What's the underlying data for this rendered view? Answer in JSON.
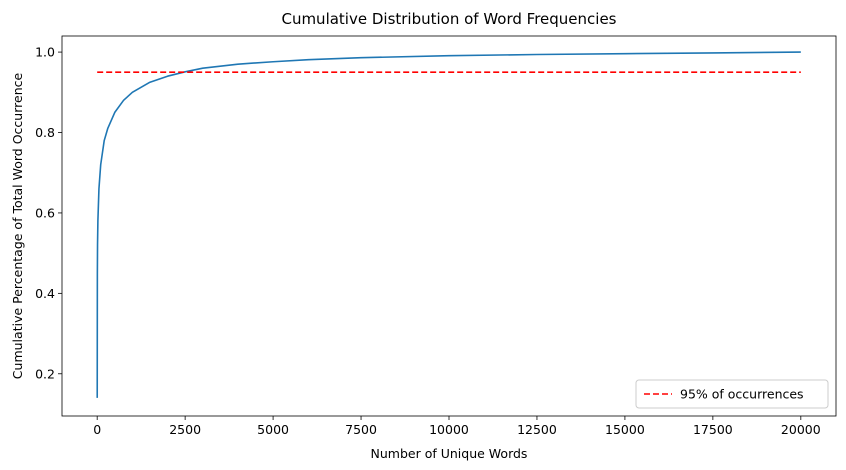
{
  "chart_data": {
    "type": "line",
    "title": "Cumulative Distribution of Word Frequencies",
    "xlabel": "Number of Unique Words",
    "ylabel": "Cumulative Percentage of Total Word Occurrence",
    "xlim": [
      -1000,
      21000
    ],
    "ylim": [
      0.095,
      1.04
    ],
    "xticks": [
      0,
      2500,
      5000,
      7500,
      10000,
      12500,
      15000,
      17500,
      20000
    ],
    "xtick_labels": [
      "0",
      "2500",
      "5000",
      "7500",
      "10000",
      "12500",
      "15000",
      "17500",
      "20000"
    ],
    "yticks": [
      0.2,
      0.4,
      0.6,
      0.8,
      1.0
    ],
    "ytick_labels": [
      "0.2",
      "0.4",
      "0.6",
      "0.8",
      "1.0"
    ],
    "grid": false,
    "legend_position": "lower-right",
    "series": [
      {
        "color": "#1f77b4",
        "style": "solid",
        "x": [
          1,
          5,
          10,
          20,
          50,
          100,
          200,
          300,
          500,
          750,
          1000,
          1500,
          2000,
          2500,
          3000,
          4000,
          5000,
          6000,
          7500,
          10000,
          12500,
          15000,
          17500,
          20000
        ],
        "y": [
          0.14,
          0.45,
          0.52,
          0.58,
          0.66,
          0.72,
          0.78,
          0.81,
          0.85,
          0.88,
          0.9,
          0.925,
          0.94,
          0.951,
          0.96,
          0.97,
          0.976,
          0.981,
          0.986,
          0.991,
          0.994,
          0.996,
          0.998,
          1.0
        ]
      },
      {
        "name": "95% of occurrences",
        "color": "#ff0000",
        "style": "dashed",
        "x": [
          0,
          20000
        ],
        "y": [
          0.95,
          0.95
        ]
      }
    ]
  }
}
